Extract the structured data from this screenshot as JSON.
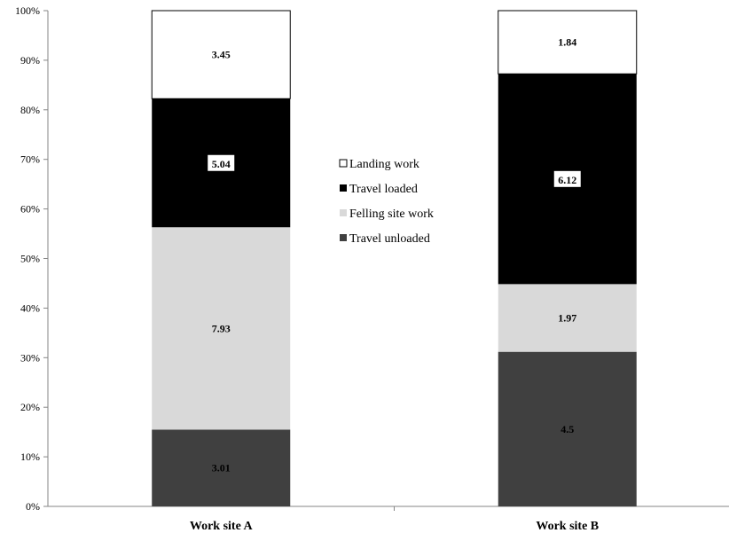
{
  "chart_data": {
    "type": "bar",
    "stacked": true,
    "normalized_percent": true,
    "categories": [
      "Work site A",
      "Work site B"
    ],
    "series": [
      {
        "name": "Travel unloaded",
        "values": [
          3.01,
          4.5
        ],
        "color": "#404040",
        "label_color": "#000000",
        "label_boxed": false
      },
      {
        "name": "Felling site work",
        "values": [
          7.93,
          1.97
        ],
        "color": "#d9d9d9",
        "label_color": "#000000",
        "label_boxed": false
      },
      {
        "name": "Travel loaded",
        "values": [
          5.04,
          6.12
        ],
        "color": "#000000",
        "label_color": "#000000",
        "label_boxed": true
      },
      {
        "name": "Landing work",
        "values": [
          3.45,
          1.84
        ],
        "color": "#ffffff",
        "label_color": "#000000",
        "label_boxed": false
      }
    ],
    "data_labels": [
      [
        "3.01",
        "4.5"
      ],
      [
        "7.93",
        "1.97"
      ],
      [
        "5.04",
        "6.12"
      ],
      [
        "3.45",
        "1.84"
      ]
    ],
    "ylim": [
      0,
      100
    ],
    "y_ticks": [
      "0%",
      "10%",
      "20%",
      "30%",
      "40%",
      "50%",
      "60%",
      "70%",
      "80%",
      "90%",
      "100%"
    ],
    "legend_order": [
      3,
      2,
      1,
      0
    ],
    "legend_position": "center",
    "grid": false,
    "title": "",
    "xlabel": "",
    "ylabel": ""
  }
}
